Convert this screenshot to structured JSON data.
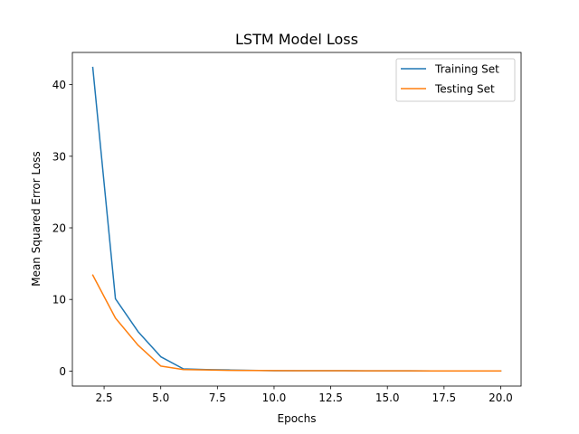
{
  "chart_data": {
    "type": "line",
    "title": "LSTM Model Loss",
    "xlabel": "Epochs",
    "ylabel": "Mean Squared Error Loss",
    "xlim": [
      1.1,
      20.9
    ],
    "ylim": [
      -2.1,
      44.5
    ],
    "xticks": [
      2.5,
      5.0,
      7.5,
      10.0,
      12.5,
      15.0,
      17.5,
      20.0
    ],
    "xtick_labels": [
      "2.5",
      "5.0",
      "7.5",
      "10.0",
      "12.5",
      "15.0",
      "17.5",
      "20.0"
    ],
    "yticks": [
      0,
      10,
      20,
      30,
      40
    ],
    "ytick_labels": [
      "0",
      "10",
      "20",
      "30",
      "40"
    ],
    "grid": false,
    "legend_position": "top-right",
    "x": [
      2,
      3,
      4,
      5,
      6,
      7,
      8,
      9,
      10,
      11,
      12,
      13,
      14,
      15,
      16,
      17,
      18,
      19,
      20
    ],
    "series": [
      {
        "name": "Training Set",
        "color": "#1f77b4",
        "values": [
          42.4,
          10.1,
          5.5,
          2.0,
          0.3,
          0.2,
          0.15,
          0.1,
          0.05,
          0.05,
          0.04,
          0.04,
          0.03,
          0.03,
          0.03,
          0.02,
          0.02,
          0.02,
          0.02
        ]
      },
      {
        "name": "Testing Set",
        "color": "#ff7f0e",
        "values": [
          13.4,
          7.4,
          3.6,
          0.7,
          0.2,
          0.15,
          0.1,
          0.08,
          0.06,
          0.05,
          0.04,
          0.04,
          0.03,
          0.03,
          0.03,
          0.02,
          0.02,
          0.02,
          0.02
        ]
      }
    ]
  }
}
